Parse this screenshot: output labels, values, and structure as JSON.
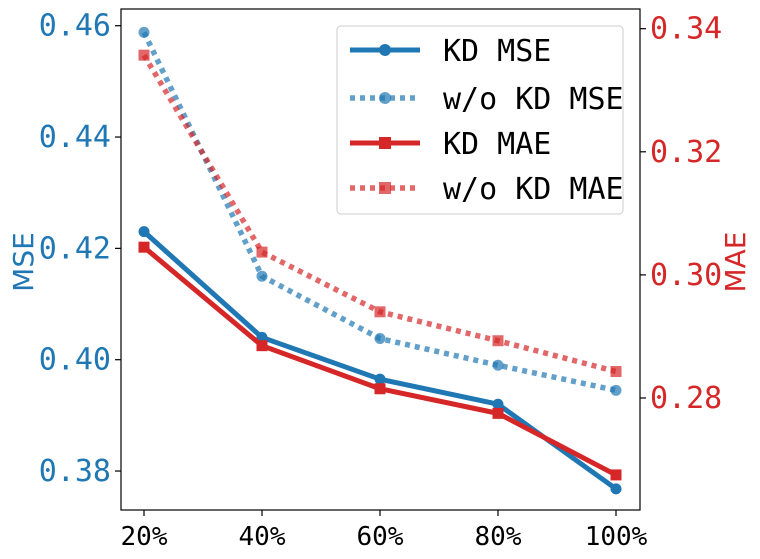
{
  "chart_data": {
    "type": "line",
    "categories": [
      "20%",
      "40%",
      "60%",
      "80%",
      "100%"
    ],
    "y_left": {
      "label": "MSE",
      "range": [
        0.373,
        0.463
      ],
      "ticks": [
        0.38,
        0.4,
        0.42,
        0.44,
        0.46
      ],
      "tick_labels": [
        "0.38",
        "0.40",
        "0.42",
        "0.44",
        "0.46"
      ],
      "color": "#1f77b4"
    },
    "y_right": {
      "label": "MAE",
      "range": [
        0.2618,
        0.3432
      ],
      "ticks": [
        0.28,
        0.3,
        0.32,
        0.34
      ],
      "tick_labels": [
        "0.28",
        "0.30",
        "0.32",
        "0.34"
      ],
      "color": "#d62728"
    },
    "series": [
      {
        "name": "KD MSE",
        "axis": "left",
        "style": "solid",
        "marker": "circle",
        "color": "#1f77b4",
        "values": [
          0.423,
          0.404,
          0.3965,
          0.392,
          0.3768
        ]
      },
      {
        "name": "w/o KD MSE",
        "axis": "left",
        "style": "dotted",
        "marker": "circle",
        "color": "#1f77b4",
        "values": [
          0.4588,
          0.415,
          0.4038,
          0.399,
          0.3945
        ]
      },
      {
        "name": "KD MAE",
        "axis": "right",
        "style": "solid",
        "marker": "square",
        "color": "#d62728",
        "values": [
          0.3045,
          0.2885,
          0.2815,
          0.2775,
          0.2675
        ]
      },
      {
        "name": "w/o KD MAE",
        "axis": "right",
        "style": "dotted",
        "marker": "square",
        "color": "#d62728",
        "values": [
          0.3357,
          0.3037,
          0.294,
          0.2893,
          0.2843
        ]
      }
    ],
    "legend": {
      "position": "top-right"
    },
    "grid": false
  }
}
